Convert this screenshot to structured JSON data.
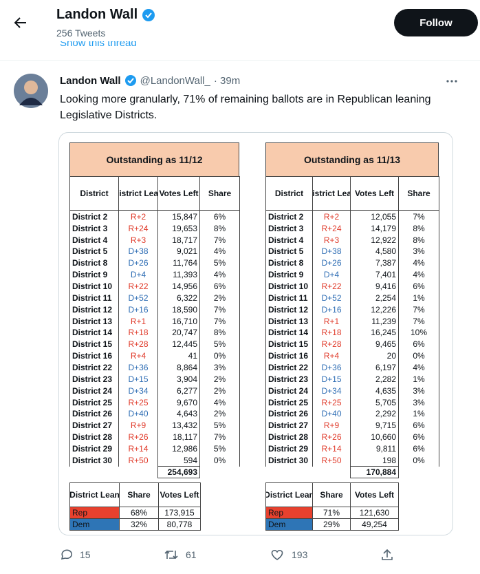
{
  "header": {
    "name": "Landon Wall",
    "tweet_count": "256 Tweets",
    "follow": "Follow",
    "show_thread": "Show this thread"
  },
  "tweet": {
    "name": "Landon Wall",
    "handle": "@LandonWall_",
    "time": "· 39m",
    "text_lines": [
      "Looking more granularly, 71% of remaining ballots are in Republican leaning",
      "Legislative Districts."
    ]
  },
  "tables": [
    {
      "title": "Outstanding as 11/12",
      "columns": [
        "District",
        "District Lean",
        "Votes Left",
        "Share"
      ],
      "rows": [
        [
          "District 2",
          "R+2",
          "15,847",
          "6%"
        ],
        [
          "District 3",
          "R+24",
          "19,653",
          "8%"
        ],
        [
          "District 4",
          "R+3",
          "18,717",
          "7%"
        ],
        [
          "District 5",
          "D+38",
          "9,021",
          "4%"
        ],
        [
          "District 8",
          "D+26",
          "11,764",
          "5%"
        ],
        [
          "District 9",
          "D+4",
          "11,393",
          "4%"
        ],
        [
          "District 10",
          "R+22",
          "14,956",
          "6%"
        ],
        [
          "District 11",
          "D+52",
          "6,322",
          "2%"
        ],
        [
          "District 12",
          "D+16",
          "18,590",
          "7%"
        ],
        [
          "District 13",
          "R+1",
          "16,710",
          "7%"
        ],
        [
          "District 14",
          "R+18",
          "20,747",
          "8%"
        ],
        [
          "District 15",
          "R+28",
          "12,445",
          "5%"
        ],
        [
          "District 16",
          "R+4",
          "41",
          "0%"
        ],
        [
          "District 22",
          "D+36",
          "8,864",
          "3%"
        ],
        [
          "District 23",
          "D+15",
          "3,904",
          "2%"
        ],
        [
          "District 24",
          "D+34",
          "6,277",
          "2%"
        ],
        [
          "District 25",
          "R+25",
          "9,670",
          "4%"
        ],
        [
          "District 26",
          "D+40",
          "4,643",
          "2%"
        ],
        [
          "District 27",
          "R+9",
          "13,432",
          "5%"
        ],
        [
          "District 28",
          "R+26",
          "18,117",
          "7%"
        ],
        [
          "District 29",
          "R+14",
          "12,986",
          "5%"
        ],
        [
          "District 30",
          "R+50",
          "594",
          "0%"
        ]
      ],
      "total": "254,693",
      "summary": {
        "columns": [
          "District Lean",
          "Share",
          "Votes Left"
        ],
        "rows": [
          [
            "Rep",
            "68%",
            "173,915"
          ],
          [
            "Dem",
            "32%",
            "80,778"
          ]
        ]
      }
    },
    {
      "title": "Outstanding as 11/13",
      "columns": [
        "District",
        "District Lean",
        "Votes Left",
        "Share"
      ],
      "rows": [
        [
          "District 2",
          "R+2",
          "12,055",
          "7%"
        ],
        [
          "District 3",
          "R+24",
          "14,179",
          "8%"
        ],
        [
          "District 4",
          "R+3",
          "12,922",
          "8%"
        ],
        [
          "District 5",
          "D+38",
          "4,580",
          "3%"
        ],
        [
          "District 8",
          "D+26",
          "7,387",
          "4%"
        ],
        [
          "District 9",
          "D+4",
          "7,401",
          "4%"
        ],
        [
          "District 10",
          "R+22",
          "9,416",
          "6%"
        ],
        [
          "District 11",
          "D+52",
          "2,254",
          "1%"
        ],
        [
          "District 12",
          "D+16",
          "12,226",
          "7%"
        ],
        [
          "District 13",
          "R+1",
          "11,239",
          "7%"
        ],
        [
          "District 14",
          "R+18",
          "16,245",
          "10%"
        ],
        [
          "District 15",
          "R+28",
          "9,465",
          "6%"
        ],
        [
          "District 16",
          "R+4",
          "20",
          "0%"
        ],
        [
          "District 22",
          "D+36",
          "6,197",
          "4%"
        ],
        [
          "District 23",
          "D+15",
          "2,282",
          "1%"
        ],
        [
          "District 24",
          "D+34",
          "4,635",
          "3%"
        ],
        [
          "District 25",
          "R+25",
          "5,705",
          "3%"
        ],
        [
          "District 26",
          "D+40",
          "2,292",
          "1%"
        ],
        [
          "District 27",
          "R+9",
          "9,715",
          "6%"
        ],
        [
          "District 28",
          "R+26",
          "10,660",
          "6%"
        ],
        [
          "District 29",
          "R+14",
          "9,811",
          "6%"
        ],
        [
          "District 30",
          "R+50",
          "198",
          "0%"
        ]
      ],
      "total": "170,884",
      "summary": {
        "columns": [
          "District Lean",
          "Share",
          "Votes Left"
        ],
        "rows": [
          [
            "Rep",
            "71%",
            "121,630"
          ],
          [
            "Dem",
            "29%",
            "49,254"
          ]
        ]
      }
    }
  ],
  "actions": {
    "replies": "15",
    "retweets": "61",
    "likes": "193"
  }
}
